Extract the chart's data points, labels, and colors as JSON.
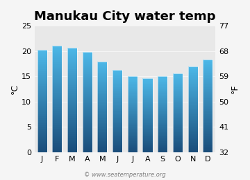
{
  "title": "Manukau City water temp",
  "months": [
    "J",
    "F",
    "M",
    "A",
    "M",
    "J",
    "J",
    "A",
    "S",
    "O",
    "N",
    "D"
  ],
  "values_c": [
    20.2,
    21.1,
    20.7,
    19.8,
    17.9,
    16.3,
    15.0,
    14.6,
    15.0,
    15.6,
    16.9,
    18.3
  ],
  "ylim_c": [
    0,
    25
  ],
  "yticks_c": [
    0,
    5,
    10,
    15,
    20,
    25
  ],
  "yticks_f": [
    32,
    41,
    50,
    59,
    68,
    77
  ],
  "ylabel_left": "°C",
  "ylabel_right": "°F",
  "bar_color_top": "#4db8e8",
  "bar_color_bottom": "#1a4d7a",
  "background_plot": "#e8e8e8",
  "background_fig": "#f5f5f5",
  "watermark": "© www.seatemperature.org",
  "title_fontsize": 13,
  "axis_fontsize": 8,
  "label_fontsize": 9
}
